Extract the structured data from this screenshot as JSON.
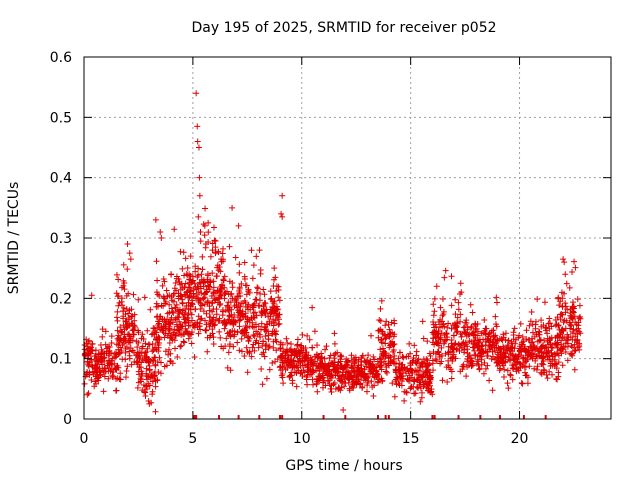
{
  "chart_data": {
    "type": "scatter",
    "title": "Day 195 of 2025, SRMTID for receiver p052",
    "xlabel": "GPS time / hours",
    "ylabel": "SRMTID / TECUs",
    "xlim": [
      0,
      24.2
    ],
    "ylim": [
      0,
      0.6
    ],
    "x_ticks": [
      0,
      5,
      10,
      15,
      20
    ],
    "y_ticks": [
      0,
      0.1,
      0.2,
      0.3,
      0.4,
      0.5,
      0.6
    ],
    "x_tick_labels": [
      "0",
      "5",
      "10",
      "15",
      "20"
    ],
    "y_tick_labels": [
      "0",
      "0.1",
      "0.2",
      "0.3",
      "0.4",
      "0.5",
      "0.6"
    ],
    "grid": true,
    "marker": "+",
    "series_color": "#e00000",
    "segments": [
      {
        "x0": 0.0,
        "x1": 1.5,
        "base": 0.095,
        "spread": 0.03,
        "n": 55
      },
      {
        "x0": 1.5,
        "x1": 2.4,
        "base": 0.14,
        "spread": 0.06,
        "n": 40
      },
      {
        "x0": 2.4,
        "x1": 3.3,
        "base": 0.09,
        "spread": 0.04,
        "n": 40
      },
      {
        "x0": 3.3,
        "x1": 4.2,
        "base": 0.15,
        "spread": 0.06,
        "n": 40
      },
      {
        "x0": 4.2,
        "x1": 5.1,
        "base": 0.18,
        "spread": 0.05,
        "n": 45
      },
      {
        "x0": 5.1,
        "x1": 6.4,
        "base": 0.2,
        "spread": 0.06,
        "n": 60
      },
      {
        "x0": 6.4,
        "x1": 7.6,
        "base": 0.17,
        "spread": 0.05,
        "n": 50
      },
      {
        "x0": 7.6,
        "x1": 9.0,
        "base": 0.16,
        "spread": 0.05,
        "n": 55
      },
      {
        "x0": 9.0,
        "x1": 10.5,
        "base": 0.095,
        "spread": 0.025,
        "n": 55
      },
      {
        "x0": 10.5,
        "x1": 12.0,
        "base": 0.08,
        "spread": 0.025,
        "n": 55
      },
      {
        "x0": 12.0,
        "x1": 13.5,
        "base": 0.075,
        "spread": 0.02,
        "n": 55
      },
      {
        "x0": 13.5,
        "x1": 14.3,
        "base": 0.11,
        "spread": 0.04,
        "n": 30
      },
      {
        "x0": 14.3,
        "x1": 16.0,
        "base": 0.075,
        "spread": 0.025,
        "n": 60
      },
      {
        "x0": 16.0,
        "x1": 17.5,
        "base": 0.13,
        "spread": 0.04,
        "n": 55
      },
      {
        "x0": 17.5,
        "x1": 19.0,
        "base": 0.12,
        "spread": 0.035,
        "n": 55
      },
      {
        "x0": 19.0,
        "x1": 20.5,
        "base": 0.105,
        "spread": 0.03,
        "n": 55
      },
      {
        "x0": 20.5,
        "x1": 21.8,
        "base": 0.12,
        "spread": 0.035,
        "n": 50
      },
      {
        "x0": 21.8,
        "x1": 22.8,
        "base": 0.15,
        "spread": 0.04,
        "n": 40
      }
    ],
    "peaks": [
      {
        "x": 5.15,
        "y": 0.54
      },
      {
        "x": 5.2,
        "y": 0.485
      },
      {
        "x": 5.22,
        "y": 0.46
      },
      {
        "x": 5.28,
        "y": 0.45
      },
      {
        "x": 5.3,
        "y": 0.4
      },
      {
        "x": 5.32,
        "y": 0.37
      },
      {
        "x": 5.25,
        "y": 0.335
      },
      {
        "x": 5.35,
        "y": 0.31
      },
      {
        "x": 5.55,
        "y": 0.32
      },
      {
        "x": 5.7,
        "y": 0.325
      },
      {
        "x": 6.8,
        "y": 0.35
      },
      {
        "x": 7.1,
        "y": 0.32
      },
      {
        "x": 9.1,
        "y": 0.37
      },
      {
        "x": 9.05,
        "y": 0.34
      },
      {
        "x": 9.1,
        "y": 0.335
      },
      {
        "x": 3.3,
        "y": 0.33
      },
      {
        "x": 3.5,
        "y": 0.31
      },
      {
        "x": 3.55,
        "y": 0.3
      },
      {
        "x": 2.0,
        "y": 0.29
      },
      {
        "x": 2.1,
        "y": 0.275
      },
      {
        "x": 2.15,
        "y": 0.265
      },
      {
        "x": 22.0,
        "y": 0.265
      },
      {
        "x": 22.05,
        "y": 0.26
      },
      {
        "x": 22.1,
        "y": 0.24
      },
      {
        "x": 16.2,
        "y": 0.22
      },
      {
        "x": 17.3,
        "y": 0.225
      },
      {
        "x": 4.9,
        "y": 0.27
      },
      {
        "x": 5.6,
        "y": 0.29
      },
      {
        "x": 5.9,
        "y": 0.28
      },
      {
        "x": 7.8,
        "y": 0.255
      },
      {
        "x": 11.9,
        "y": 0.015
      },
      {
        "x": 14.7,
        "y": 0.03
      },
      {
        "x": 3.0,
        "y": 0.025
      }
    ],
    "rug_x": [
      5.05,
      5.1,
      5.15,
      6.2,
      7.1,
      8.05,
      9.0,
      9.1,
      11.0,
      12.0,
      13.5,
      13.85,
      14.0,
      16.0,
      16.1,
      17.2,
      18.2,
      19.1,
      20.2,
      21.2
    ]
  }
}
